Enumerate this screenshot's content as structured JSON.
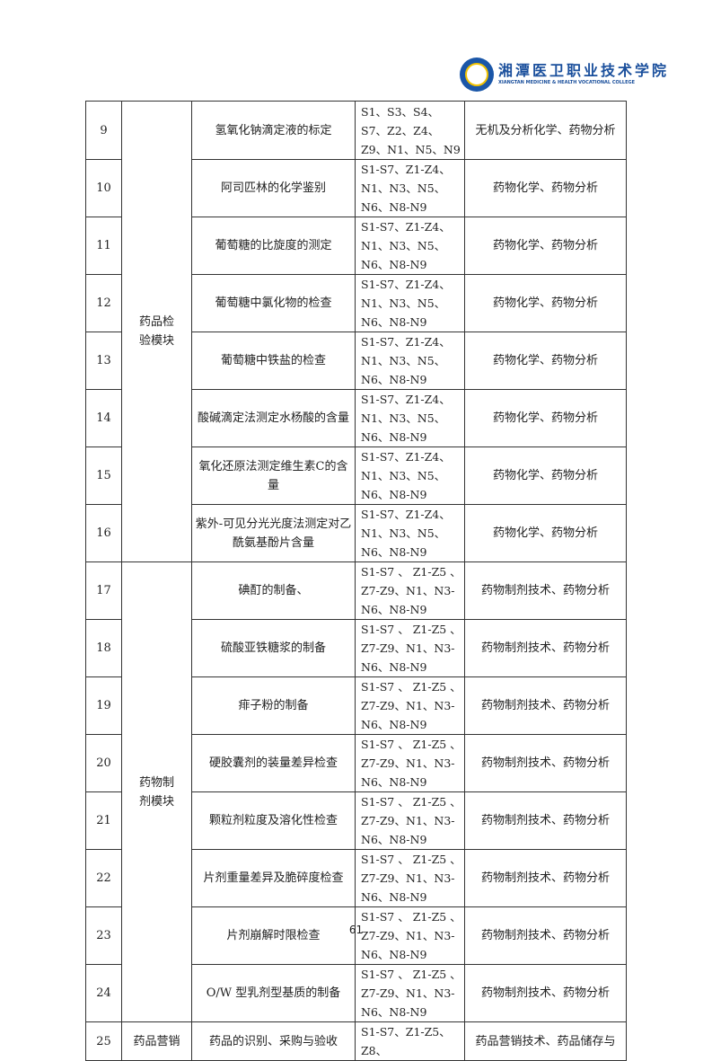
{
  "header": {
    "logo_text": "湘潭医卫职业技术学院",
    "logo_en": "XIANGTAN MEDICINE & HEALTH VOCATIONAL COLLEGE"
  },
  "rows": [
    {
      "no": "9",
      "task": "氢氧化钠滴定液的标定",
      "req": "S1、S3、S4、S7、Z2、Z4、Z9、N1、N5、N9",
      "course": "无机及分析化学、药物分析"
    },
    {
      "no": "10",
      "task": "阿司匹林的化学鉴别",
      "req": "S1-S7、Z1-Z4、N1、N3、N5、N6、N8-N9",
      "course": "药物化学、药物分析"
    },
    {
      "no": "11",
      "task": "葡萄糖的比旋度的测定",
      "req": "S1-S7、Z1-Z4、N1、N3、N5、N6、N8-N9",
      "course": "药物化学、药物分析"
    },
    {
      "no": "12",
      "task": "葡萄糖中氯化物的检查",
      "req": "S1-S7、Z1-Z4、N1、N3、N5、N6、N8-N9",
      "course": "药物化学、药物分析"
    },
    {
      "no": "13",
      "task": "葡萄糖中铁盐的检查",
      "req": "S1-S7、Z1-Z4、N1、N3、N5、N6、N8-N9",
      "course": "药物化学、药物分析"
    },
    {
      "no": "14",
      "task": "酸碱滴定法测定水杨酸的含量",
      "req": "S1-S7、Z1-Z4、N1、N3、N5、N6、N8-N9",
      "course": "药物化学、药物分析"
    },
    {
      "no": "15",
      "task": "氧化还原法测定维生素C的含量",
      "req": "S1-S7、Z1-Z4、N1、N3、N5、N6、N8-N9",
      "course": "药物化学、药物分析"
    },
    {
      "no": "16",
      "task": "紫外-可见分光光度法测定对乙酰氨基酚片含量",
      "req": "S1-S7、Z1-Z4、N1、N3、N5、N6、N8-N9",
      "course": "药物化学、药物分析"
    },
    {
      "no": "17",
      "task": "碘酊的制备、",
      "req": "S1-S7 、 Z1-Z5 、Z7-Z9、N1、N3-N6、N8-N9",
      "course": "药物制剂技术、药物分析"
    },
    {
      "no": "18",
      "task": "硫酸亚铁糖浆的制备",
      "req": "S1-S7 、 Z1-Z5 、Z7-Z9、N1、N3-N6、N8-N9",
      "course": "药物制剂技术、药物分析"
    },
    {
      "no": "19",
      "task": "痱子粉的制备",
      "req": "S1-S7 、 Z1-Z5 、Z7-Z9、N1、N3-N6、N8-N9",
      "course": "药物制剂技术、药物分析"
    },
    {
      "no": "20",
      "task": "硬胶囊剂的装量差异检查",
      "req": "S1-S7 、 Z1-Z5 、Z7-Z9、N1、N3-N6、N8-N9",
      "course": "药物制剂技术、药物分析"
    },
    {
      "no": "21",
      "task": "颗粒剂粒度及溶化性检查",
      "req": "S1-S7 、 Z1-Z5 、Z7-Z9、N1、N3-N6、N8-N9",
      "course": "药物制剂技术、药物分析"
    },
    {
      "no": "22",
      "task": "片剂重量差异及脆碎度检查",
      "req": "S1-S7 、 Z1-Z5 、Z7-Z9、N1、N3-N6、N8-N9",
      "course": "药物制剂技术、药物分析"
    },
    {
      "no": "23",
      "task": "片剂崩解时限检查",
      "req": "S1-S7 、 Z1-Z5 、Z7-Z9、N1、N3-N6、N8-N9",
      "course": "药物制剂技术、药物分析"
    },
    {
      "no": "24",
      "task": "O/W 型乳剂型基质的制备",
      "req": "S1-S7 、 Z1-Z5 、Z7-Z9、N1、N3-N6、N8-N9",
      "course": "药物制剂技术、药物分析"
    },
    {
      "no": "25",
      "task": "药品的识别、采购与验收",
      "req": "S1-S7、Z1-Z5、Z8、",
      "course": "药品营销技术、药品储存与"
    }
  ],
  "modules": {
    "inspection": "药品检验模块",
    "preparation": "药物制剂模块",
    "marketing": "药品营销"
  },
  "footer": {
    "page_number": "61"
  }
}
